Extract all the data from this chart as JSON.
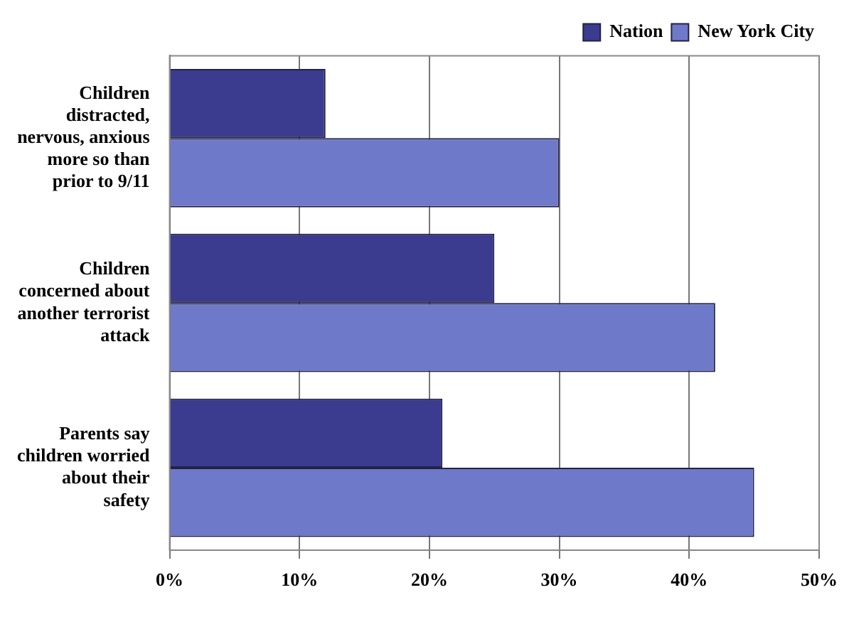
{
  "chart_data": {
    "type": "bar",
    "orientation": "horizontal",
    "categories": [
      "Children distracted, nervous, anxious more so than prior to 9/11",
      "Children concerned about another terrorist attack",
      "Parents say children worried about their safety"
    ],
    "series": [
      {
        "name": "Nation",
        "color": "#3b3b8f",
        "values": [
          12,
          25,
          21
        ]
      },
      {
        "name": "New York City",
        "color": "#6f79c9",
        "values": [
          30,
          42,
          45
        ]
      }
    ],
    "xlim": [
      0,
      50
    ],
    "xticks": [
      {
        "value": 0,
        "label": "0%"
      },
      {
        "value": 10,
        "label": "10%"
      },
      {
        "value": 20,
        "label": "20%"
      },
      {
        "value": 30,
        "label": "30%"
      },
      {
        "value": 40,
        "label": "40%"
      },
      {
        "value": 50,
        "label": "50%"
      }
    ],
    "grid": "x",
    "legend": "top right"
  }
}
